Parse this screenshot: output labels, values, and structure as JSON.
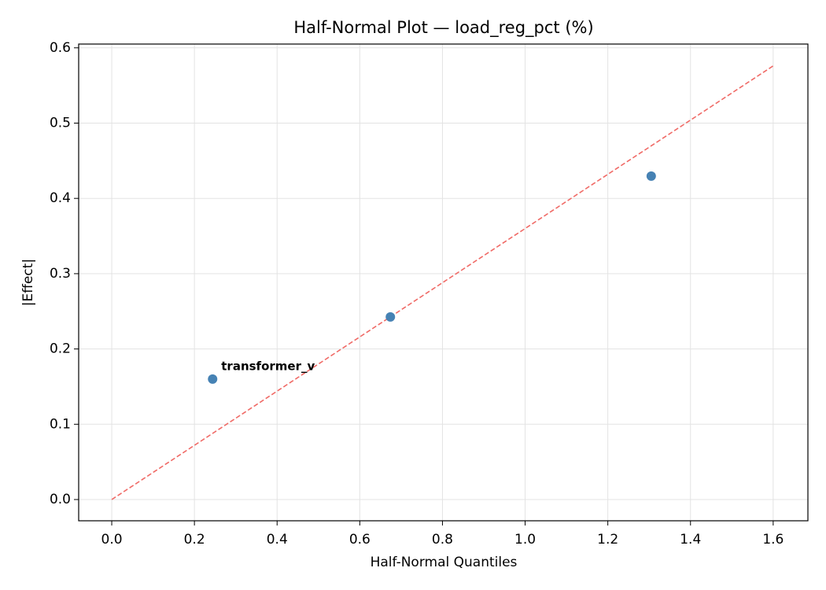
{
  "chart_data": {
    "type": "scatter",
    "title": "Half-Normal Plot — load_reg_pct (%)",
    "x_label": "Half-Normal Quantiles",
    "y_label": "|Effect|",
    "series": [
      {
        "color": "#4682b4",
        "x": [
          0.244,
          0.674,
          1.305
        ],
        "values": [
          0.16,
          0.2425,
          0.4296
        ]
      }
    ],
    "reference_line": {
      "color": "#f06a66",
      "x": [
        0,
        1.6
      ],
      "values": [
        0,
        0.576
      ]
    },
    "annotations": [
      {
        "text": "transformer_v",
        "series": 0,
        "point": 0,
        "color": "#ff0000"
      }
    ],
    "xlim": [
      -0.08,
      1.684
    ],
    "xticks": [
      {
        "value": 0,
        "label": "0.0"
      },
      0.2,
      0.4,
      0.6,
      0.8,
      {
        "value": 1,
        "label": "1.0"
      },
      1.2,
      1.4,
      1.6
    ],
    "ylim": [
      -0.0282,
      0.605
    ],
    "yticks": [
      {
        "value": 0,
        "label": "0.0"
      },
      0.1,
      0.2,
      0.3,
      0.4,
      0.5,
      0.6
    ],
    "grid": true
  }
}
